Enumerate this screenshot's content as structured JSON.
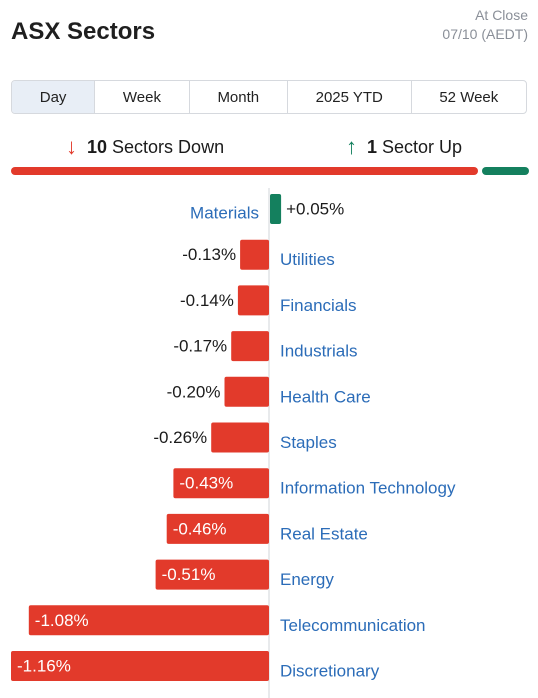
{
  "header": {
    "title": "ASX Sectors",
    "status": "At Close",
    "date": "07/10 (AEDT)"
  },
  "tabs": [
    {
      "label": "Day",
      "active": true
    },
    {
      "label": "Week",
      "active": false
    },
    {
      "label": "Month",
      "active": false
    },
    {
      "label": "2025 YTD",
      "active": false
    },
    {
      "label": "52 Week",
      "active": false
    }
  ],
  "summary": {
    "down_count": "10",
    "down_label": "Sectors Down",
    "up_count": "1",
    "up_label": "Sector Up"
  },
  "colors": {
    "negative": "#e23a2b",
    "positive": "#14805e",
    "label": "#2b6cb8"
  },
  "chart_data": {
    "type": "bar",
    "orientation": "horizontal",
    "unit": "%",
    "categories": [
      "Materials",
      "Utilities",
      "Financials",
      "Industrials",
      "Health Care",
      "Staples",
      "Information Technology",
      "Real Estate",
      "Energy",
      "Telecommunication",
      "Discretionary"
    ],
    "values": [
      0.05,
      -0.13,
      -0.14,
      -0.17,
      -0.2,
      -0.26,
      -0.43,
      -0.46,
      -0.51,
      -1.08,
      -1.16
    ],
    "labels": [
      "+0.05%",
      "-0.13%",
      "-0.14%",
      "-0.17%",
      "-0.20%",
      "-0.26%",
      "-0.43%",
      "-0.46%",
      "-0.51%",
      "-1.08%",
      "-1.16%"
    ]
  }
}
